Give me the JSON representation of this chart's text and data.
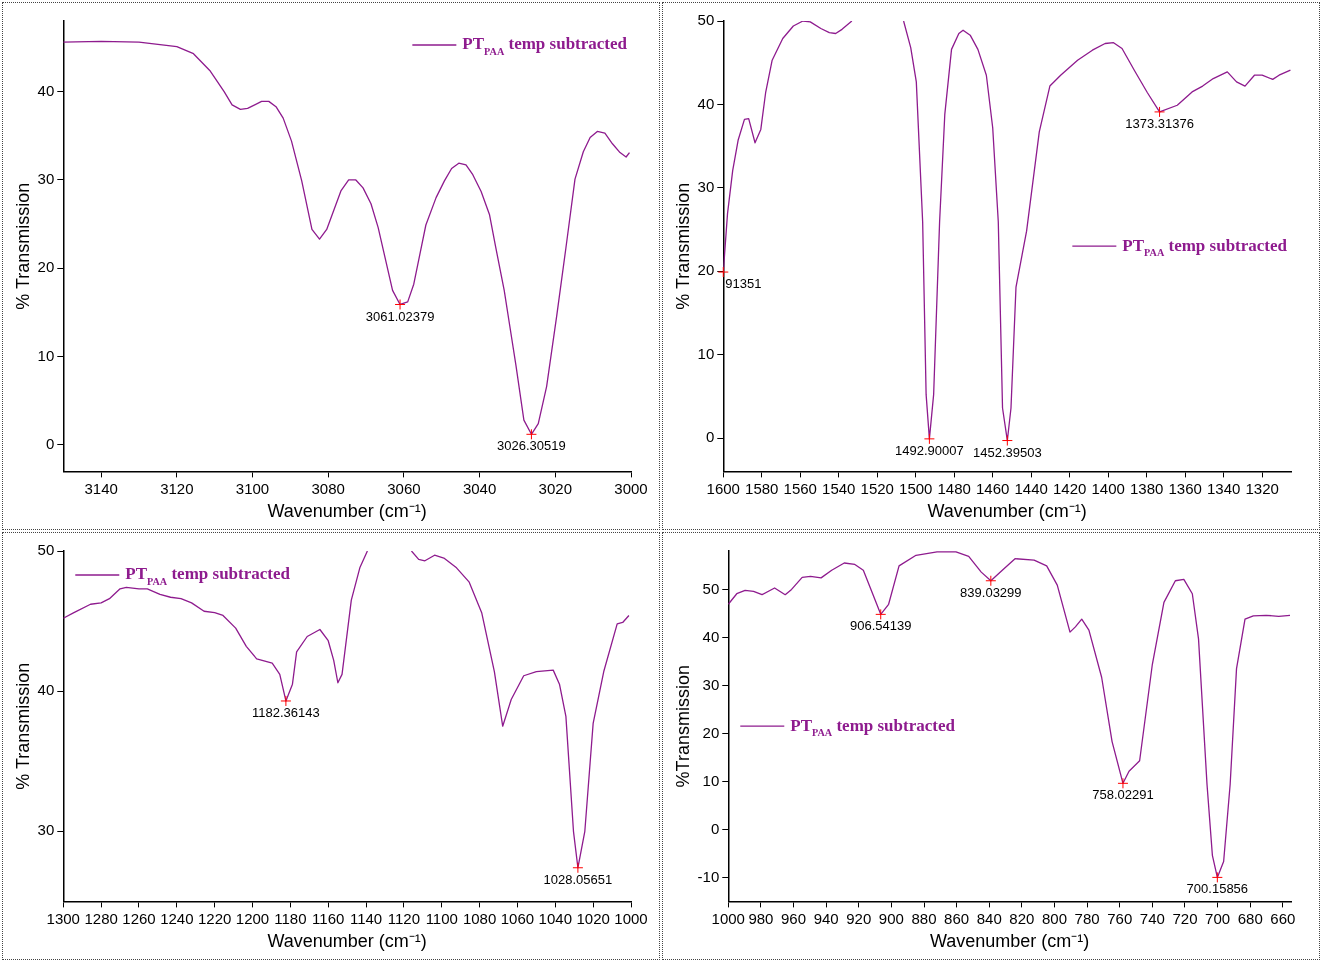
{
  "chart_data": [
    {
      "type": "line",
      "xlabel": "Wavenumber (cm⁻¹)",
      "ylabel": "% Transmission",
      "xlim": [
        3150,
        3000
      ],
      "ylim": [
        -3,
        48
      ],
      "xticks": [
        3140,
        3120,
        3100,
        3080,
        3060,
        3040,
        3020,
        3000
      ],
      "yticks": [
        0,
        10,
        20,
        30,
        40
      ],
      "grid": false,
      "legend": "top right",
      "marker": "none",
      "x": [
        3150,
        3140,
        3130,
        3120,
        3115.6,
        3111.3,
        3107.5,
        3105.4,
        3103.2,
        3101.3,
        3097.6,
        3095.7,
        3093.8,
        3091.9,
        3089.7,
        3087,
        3084.3,
        3082.3,
        3080.4,
        3076.6,
        3074.6,
        3072.7,
        3070.8,
        3068.7,
        3066.8,
        3063,
        3061.02,
        3059,
        3057.4,
        3054.2,
        3051.5,
        3049.3,
        3047.4,
        3045.5,
        3043.6,
        3041.8,
        3039.6,
        3037.4,
        3035.8,
        3033.5,
        3030.4,
        3028.3,
        3026.31,
        3024.5,
        3022.3,
        3019.6,
        3017.2,
        3014.8,
        3012.6,
        3010.8,
        3008.9,
        3006.9,
        3004.9,
        3002.9,
        3001.3,
        3000.4
      ],
      "series": [
        {
          "name": "PT$_{PAA}$ temp subtracted",
          "color": "#8e1b8e",
          "values": [
            45.6,
            45.7,
            45.6,
            45.1,
            44.3,
            42.4,
            40.0,
            38.5,
            38.0,
            38.1,
            38.9,
            38.9,
            38.3,
            37.0,
            34.4,
            29.9,
            24.4,
            23.3,
            24.4,
            28.8,
            30.0,
            30.0,
            29.1,
            27.3,
            24.6,
            17.5,
            15.9,
            16.2,
            18.2,
            24.9,
            28.0,
            29.9,
            31.3,
            31.9,
            31.7,
            30.6,
            28.7,
            26.1,
            22.5,
            17.5,
            9.0,
            2.8,
            1.2,
            2.4,
            6.6,
            14.7,
            22.3,
            30.1,
            33.2,
            34.8,
            35.5,
            35.3,
            34.1,
            33.1,
            32.6,
            33.1
          ]
        }
      ],
      "annotations": [
        {
          "text": "3061.02379",
          "x": 3061.02,
          "y": 15.9
        },
        {
          "text": "3026.30519",
          "x": 3026.31,
          "y": 1.2
        }
      ]
    },
    {
      "type": "line",
      "xlabel": "Wavenumber (cm⁻¹)",
      "ylabel": "% Transmission",
      "xlim": [
        1600,
        1305
      ],
      "ylim": [
        -4,
        50
      ],
      "xticks": [
        1600,
        1580,
        1560,
        1540,
        1520,
        1500,
        1480,
        1460,
        1440,
        1420,
        1400,
        1380,
        1360,
        1340,
        1320
      ],
      "yticks": [
        0,
        10,
        20,
        30,
        40,
        50
      ],
      "grid": false,
      "legend": "right",
      "marker": "none",
      "x": [
        1600,
        1597.8,
        1595.1,
        1592.3,
        1589,
        1586.8,
        1583.5,
        1580.5,
        1578,
        1574.6,
        1569.1,
        1563.6,
        1558.6,
        1554.8,
        1549.3,
        1544.9,
        1541.6,
        1538.3,
        1533.2,
        1520,
        1506.3,
        1502.6,
        1499.7,
        1496.4,
        1494.6,
        1492.9,
        1490.7,
        1487.6,
        1484.9,
        1481.4,
        1477.6,
        1475.4,
        1471.7,
        1467.7,
        1463.3,
        1460,
        1457.1,
        1454.9,
        1452.4,
        1450.5,
        1447.9,
        1442.4,
        1435.8,
        1430.3,
        1424.7,
        1415.9,
        1408.2,
        1401.6,
        1397.2,
        1392.8,
        1386.2,
        1379.6,
        1373.3,
        1364.1,
        1356.4,
        1350.9,
        1345.4,
        1338.1,
        1333.3,
        1328.9,
        1324,
        1320,
        1314.5,
        1311.2,
        1305.3
      ],
      "series": [
        {
          "name": "PT$_{PAA}$ temp subtracted",
          "color": "#8e1b8e",
          "values": [
            19.9,
            26.9,
            32.1,
            35.7,
            38.2,
            38.3,
            35.4,
            37.0,
            41.4,
            45.3,
            47.9,
            49.4,
            50.0,
            49.9,
            49.1,
            48.6,
            48.5,
            49.0,
            50.0,
            null,
            50.0,
            46.8,
            42.7,
            25.9,
            5.2,
            -0.1,
            5.2,
            25.9,
            38.8,
            46.6,
            48.5,
            48.9,
            48.3,
            46.6,
            43.5,
            37.2,
            25.9,
            3.6,
            -0.3,
            3.6,
            18.1,
            24.8,
            36.7,
            42.2,
            43.5,
            45.3,
            46.5,
            47.3,
            47.4,
            46.7,
            44.0,
            41.4,
            39.1,
            39.9,
            41.5,
            42.2,
            43.1,
            43.9,
            42.7,
            42.2,
            43.5,
            43.5,
            43.0,
            43.5,
            44.1
          ]
        }
      ],
      "annotations": [
        {
          "text": "91351",
          "x": 1600,
          "y": 19.9
        },
        {
          "text": "1492.90007",
          "x": 1492.9,
          "y": -0.1
        },
        {
          "text": "1452.39503",
          "x": 1452.4,
          "y": -0.3
        },
        {
          "text": "1373.31376",
          "x": 1373.3,
          "y": 39.1
        }
      ]
    },
    {
      "type": "line",
      "xlabel": "Wavenumber (cm⁻¹)",
      "ylabel": "% Transmission",
      "xlim": [
        1300,
        1000
      ],
      "ylim": [
        25,
        50
      ],
      "xticks": [
        1300,
        1280,
        1260,
        1240,
        1220,
        1200,
        1180,
        1160,
        1140,
        1120,
        1100,
        1080,
        1060,
        1040,
        1020,
        1000
      ],
      "yticks": [
        30,
        40,
        50
      ],
      "grid": false,
      "legend": "top left",
      "marker": "none",
      "x": [
        1300,
        1294.4,
        1285.6,
        1280,
        1275.6,
        1270,
        1266.7,
        1260,
        1255.6,
        1248.9,
        1243.3,
        1237.8,
        1232.2,
        1225.6,
        1220,
        1215.6,
        1208.9,
        1203.3,
        1197.8,
        1189.6,
        1185.6,
        1182.36,
        1178.9,
        1176.7,
        1171.1,
        1164.4,
        1160,
        1157.1,
        1154.9,
        1152.7,
        1147.8,
        1143.3,
        1139.3,
        1128,
        1116,
        1112.2,
        1108.9,
        1103.8,
        1098.9,
        1092.2,
        1085.6,
        1078.9,
        1072.2,
        1067.8,
        1063.3,
        1056.7,
        1050,
        1041.1,
        1037.8,
        1034.4,
        1030.4,
        1028.06,
        1024.4,
        1020,
        1014.4,
        1007.3,
        1004.4,
        1001.1
      ],
      "series": [
        {
          "name": "PT$_{PAA}$ temp subtracted",
          "color": "#8e1b8e",
          "values": [
            45.2,
            45.6,
            46.2,
            46.3,
            46.6,
            47.3,
            47.4,
            47.3,
            47.3,
            46.9,
            46.7,
            46.6,
            46.3,
            45.7,
            45.6,
            45.4,
            44.5,
            43.2,
            42.3,
            42.0,
            41.2,
            39.3,
            40.5,
            42.8,
            43.9,
            44.4,
            43.6,
            42.2,
            40.6,
            41.2,
            46.5,
            48.8,
            50.0,
            null,
            50.0,
            49.4,
            49.3,
            49.7,
            49.5,
            48.8,
            47.8,
            45.6,
            41.4,
            37.5,
            39.4,
            41.1,
            41.4,
            41.5,
            40.5,
            38.2,
            30.0,
            27.4,
            30.0,
            37.7,
            41.4,
            44.8,
            44.9,
            45.4
          ]
        }
      ],
      "annotations": [
        {
          "text": "1182.36143",
          "x": 1182.36,
          "y": 39.3
        },
        {
          "text": "1028.05651",
          "x": 1028.06,
          "y": 27.4
        }
      ]
    },
    {
      "type": "line",
      "xlabel": "Wavenumber (cm⁻¹)",
      "ylabel": "%Transmission",
      "xlim": [
        1000,
        655
      ],
      "ylim": [
        -15,
        58
      ],
      "xticks": [
        1000,
        980,
        960,
        940,
        920,
        900,
        880,
        860,
        840,
        820,
        800,
        780,
        760,
        740,
        720,
        700,
        680,
        660
      ],
      "yticks": [
        -10,
        0,
        10,
        20,
        30,
        40,
        50
      ],
      "grid": false,
      "legend": "left",
      "marker": "none",
      "x": [
        1000,
        994.8,
        989.7,
        984.5,
        979.3,
        971.6,
        965.1,
        961.2,
        954.7,
        949.6,
        943.1,
        936.6,
        928.9,
        922.4,
        917.2,
        912.1,
        906.54,
        901.7,
        895.3,
        884.9,
        872,
        860.4,
        852.6,
        844.9,
        839.03,
        832,
        824.2,
        812.5,
        804.8,
        798.3,
        790.5,
        787.2,
        783.3,
        778.9,
        771.1,
        764.7,
        758.02,
        754.3,
        747.8,
        740,
        732.9,
        725.9,
        720.7,
        715.5,
        711.7,
        706.5,
        703.2,
        700.16,
        696.3,
        692.3,
        688.4,
        683.2,
        678.1,
        670.3,
        662.5,
        655.6
      ],
      "series": [
        {
          "name": "PT$_{PAA}$ temp subtracted",
          "color": "#8e1b8e",
          "values": [
            46.9,
            49.1,
            49.8,
            49.6,
            48.9,
            50.3,
            48.9,
            50.0,
            52.5,
            52.7,
            52.4,
            54.0,
            55.5,
            55.2,
            54.0,
            49.6,
            44.8,
            46.9,
            54.9,
            57.1,
            57.8,
            57.8,
            56.9,
            53.6,
            51.8,
            54.0,
            56.4,
            56.1,
            54.9,
            50.9,
            41.1,
            42.2,
            43.8,
            41.5,
            31.7,
            18.3,
            9.6,
            12.1,
            14.3,
            34.4,
            47.3,
            51.8,
            52.1,
            49.1,
            39.7,
            9.4,
            -5.4,
            -10.0,
            -6.7,
            9.4,
            33.5,
            43.8,
            44.5,
            44.6,
            44.4,
            44.6
          ]
        }
      ],
      "annotations": [
        {
          "text": "906.54139",
          "x": 906.54,
          "y": 44.8
        },
        {
          "text": "839.03299",
          "x": 839.03,
          "y": 51.8
        },
        {
          "text": "758.02291",
          "x": 758.02,
          "y": 9.6
        },
        {
          "text": "700.15856",
          "x": 700.16,
          "y": -10.0
        }
      ]
    }
  ]
}
